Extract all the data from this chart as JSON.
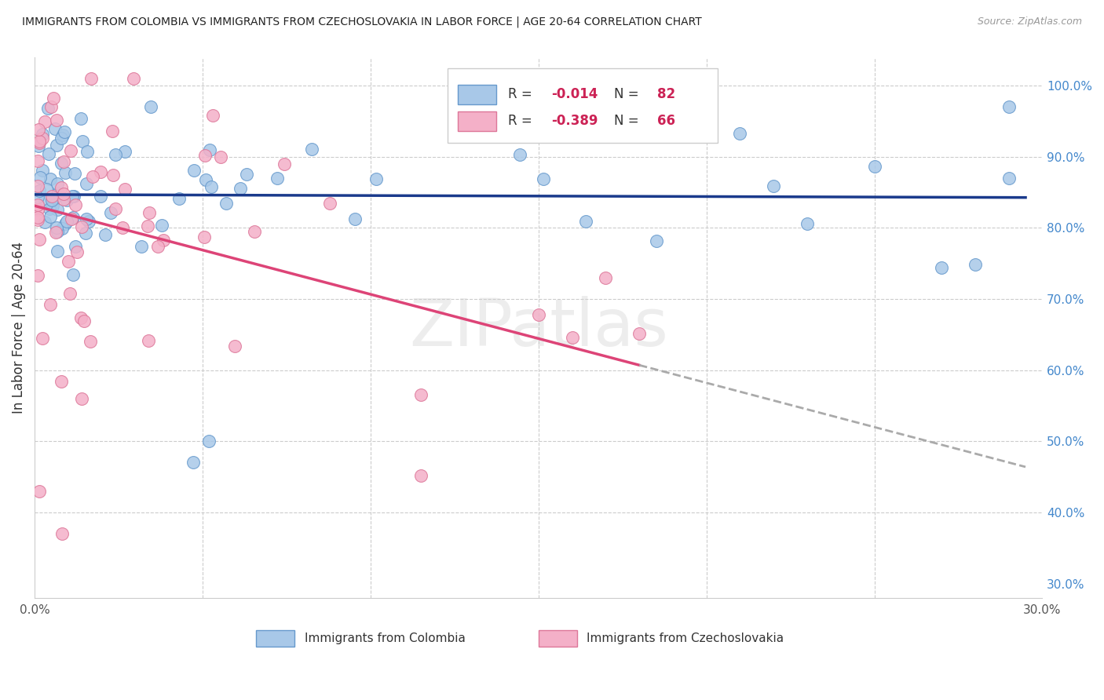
{
  "title": "IMMIGRANTS FROM COLOMBIA VS IMMIGRANTS FROM CZECHOSLOVAKIA IN LABOR FORCE | AGE 20-64 CORRELATION CHART",
  "source": "Source: ZipAtlas.com",
  "ylabel": "In Labor Force | Age 20-64",
  "xlim": [
    0.0,
    0.3
  ],
  "ylim": [
    0.28,
    1.04
  ],
  "R_colombia": -0.014,
  "N_colombia": 82,
  "R_czechoslovakia": -0.389,
  "N_czechoslovakia": 66,
  "colombia_fill": "#a8c8e8",
  "colombia_edge": "#6699cc",
  "czechoslovakia_fill": "#f4b0c8",
  "czechoslovakia_edge": "#dd7799",
  "trend_blue": "#1a3a8c",
  "trend_pink": "#dd4477",
  "trend_dash": "#aaaaaa",
  "watermark": "ZIPatlas",
  "legend_labels": [
    "Immigrants from Colombia",
    "Immigrants from Czechoslovakia"
  ]
}
